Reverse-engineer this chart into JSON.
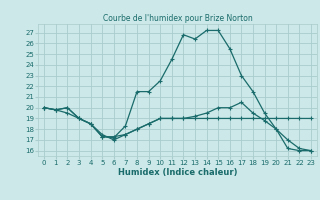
{
  "title": "Courbe de l'humidex pour Brize Norton",
  "xlabel": "Humidex (Indice chaleur)",
  "xlim": [
    -0.5,
    23.5
  ],
  "ylim": [
    15.5,
    27.8
  ],
  "yticks": [
    16,
    17,
    18,
    19,
    20,
    21,
    22,
    23,
    24,
    25,
    26,
    27
  ],
  "xticks": [
    0,
    1,
    2,
    3,
    4,
    5,
    6,
    7,
    8,
    9,
    10,
    11,
    12,
    13,
    14,
    15,
    16,
    17,
    18,
    19,
    20,
    21,
    22,
    23
  ],
  "bg_color": "#cce8e8",
  "grid_color": "#aacccc",
  "line_color": "#1a6b6b",
  "line1_x": [
    0,
    1,
    2,
    3,
    4,
    5,
    6,
    7,
    8,
    9,
    10,
    11,
    12,
    13,
    14,
    15,
    16,
    17,
    18,
    19,
    20,
    21,
    22,
    23
  ],
  "line1_y": [
    20,
    19.8,
    20,
    19,
    18.5,
    17.5,
    17,
    17.5,
    18,
    18.5,
    19,
    19,
    19,
    19,
    19,
    19,
    19,
    19,
    19,
    19,
    19,
    19,
    19,
    19
  ],
  "line2_x": [
    0,
    1,
    2,
    3,
    4,
    5,
    6,
    7,
    8,
    9,
    10,
    11,
    12,
    13,
    14,
    15,
    16,
    17,
    18,
    19,
    20,
    21,
    22,
    23
  ],
  "line2_y": [
    20,
    19.8,
    20,
    19,
    18.5,
    17.3,
    17.2,
    18.3,
    21.5,
    21.5,
    22.5,
    24.5,
    26.8,
    26.4,
    27.2,
    27.2,
    25.5,
    23,
    21.5,
    19.5,
    18,
    16.2,
    16,
    16
  ],
  "line3_x": [
    0,
    1,
    2,
    3,
    4,
    5,
    6,
    7,
    8,
    9,
    10,
    11,
    12,
    13,
    14,
    15,
    16,
    17,
    18,
    19,
    20,
    21,
    22,
    23
  ],
  "line3_y": [
    20,
    19.8,
    19.5,
    19,
    18.5,
    17.3,
    17.3,
    17.5,
    18,
    18.5,
    19,
    19,
    19,
    19.2,
    19.5,
    20,
    20,
    20.5,
    19.5,
    18.8,
    18,
    17,
    16.2,
    16
  ]
}
